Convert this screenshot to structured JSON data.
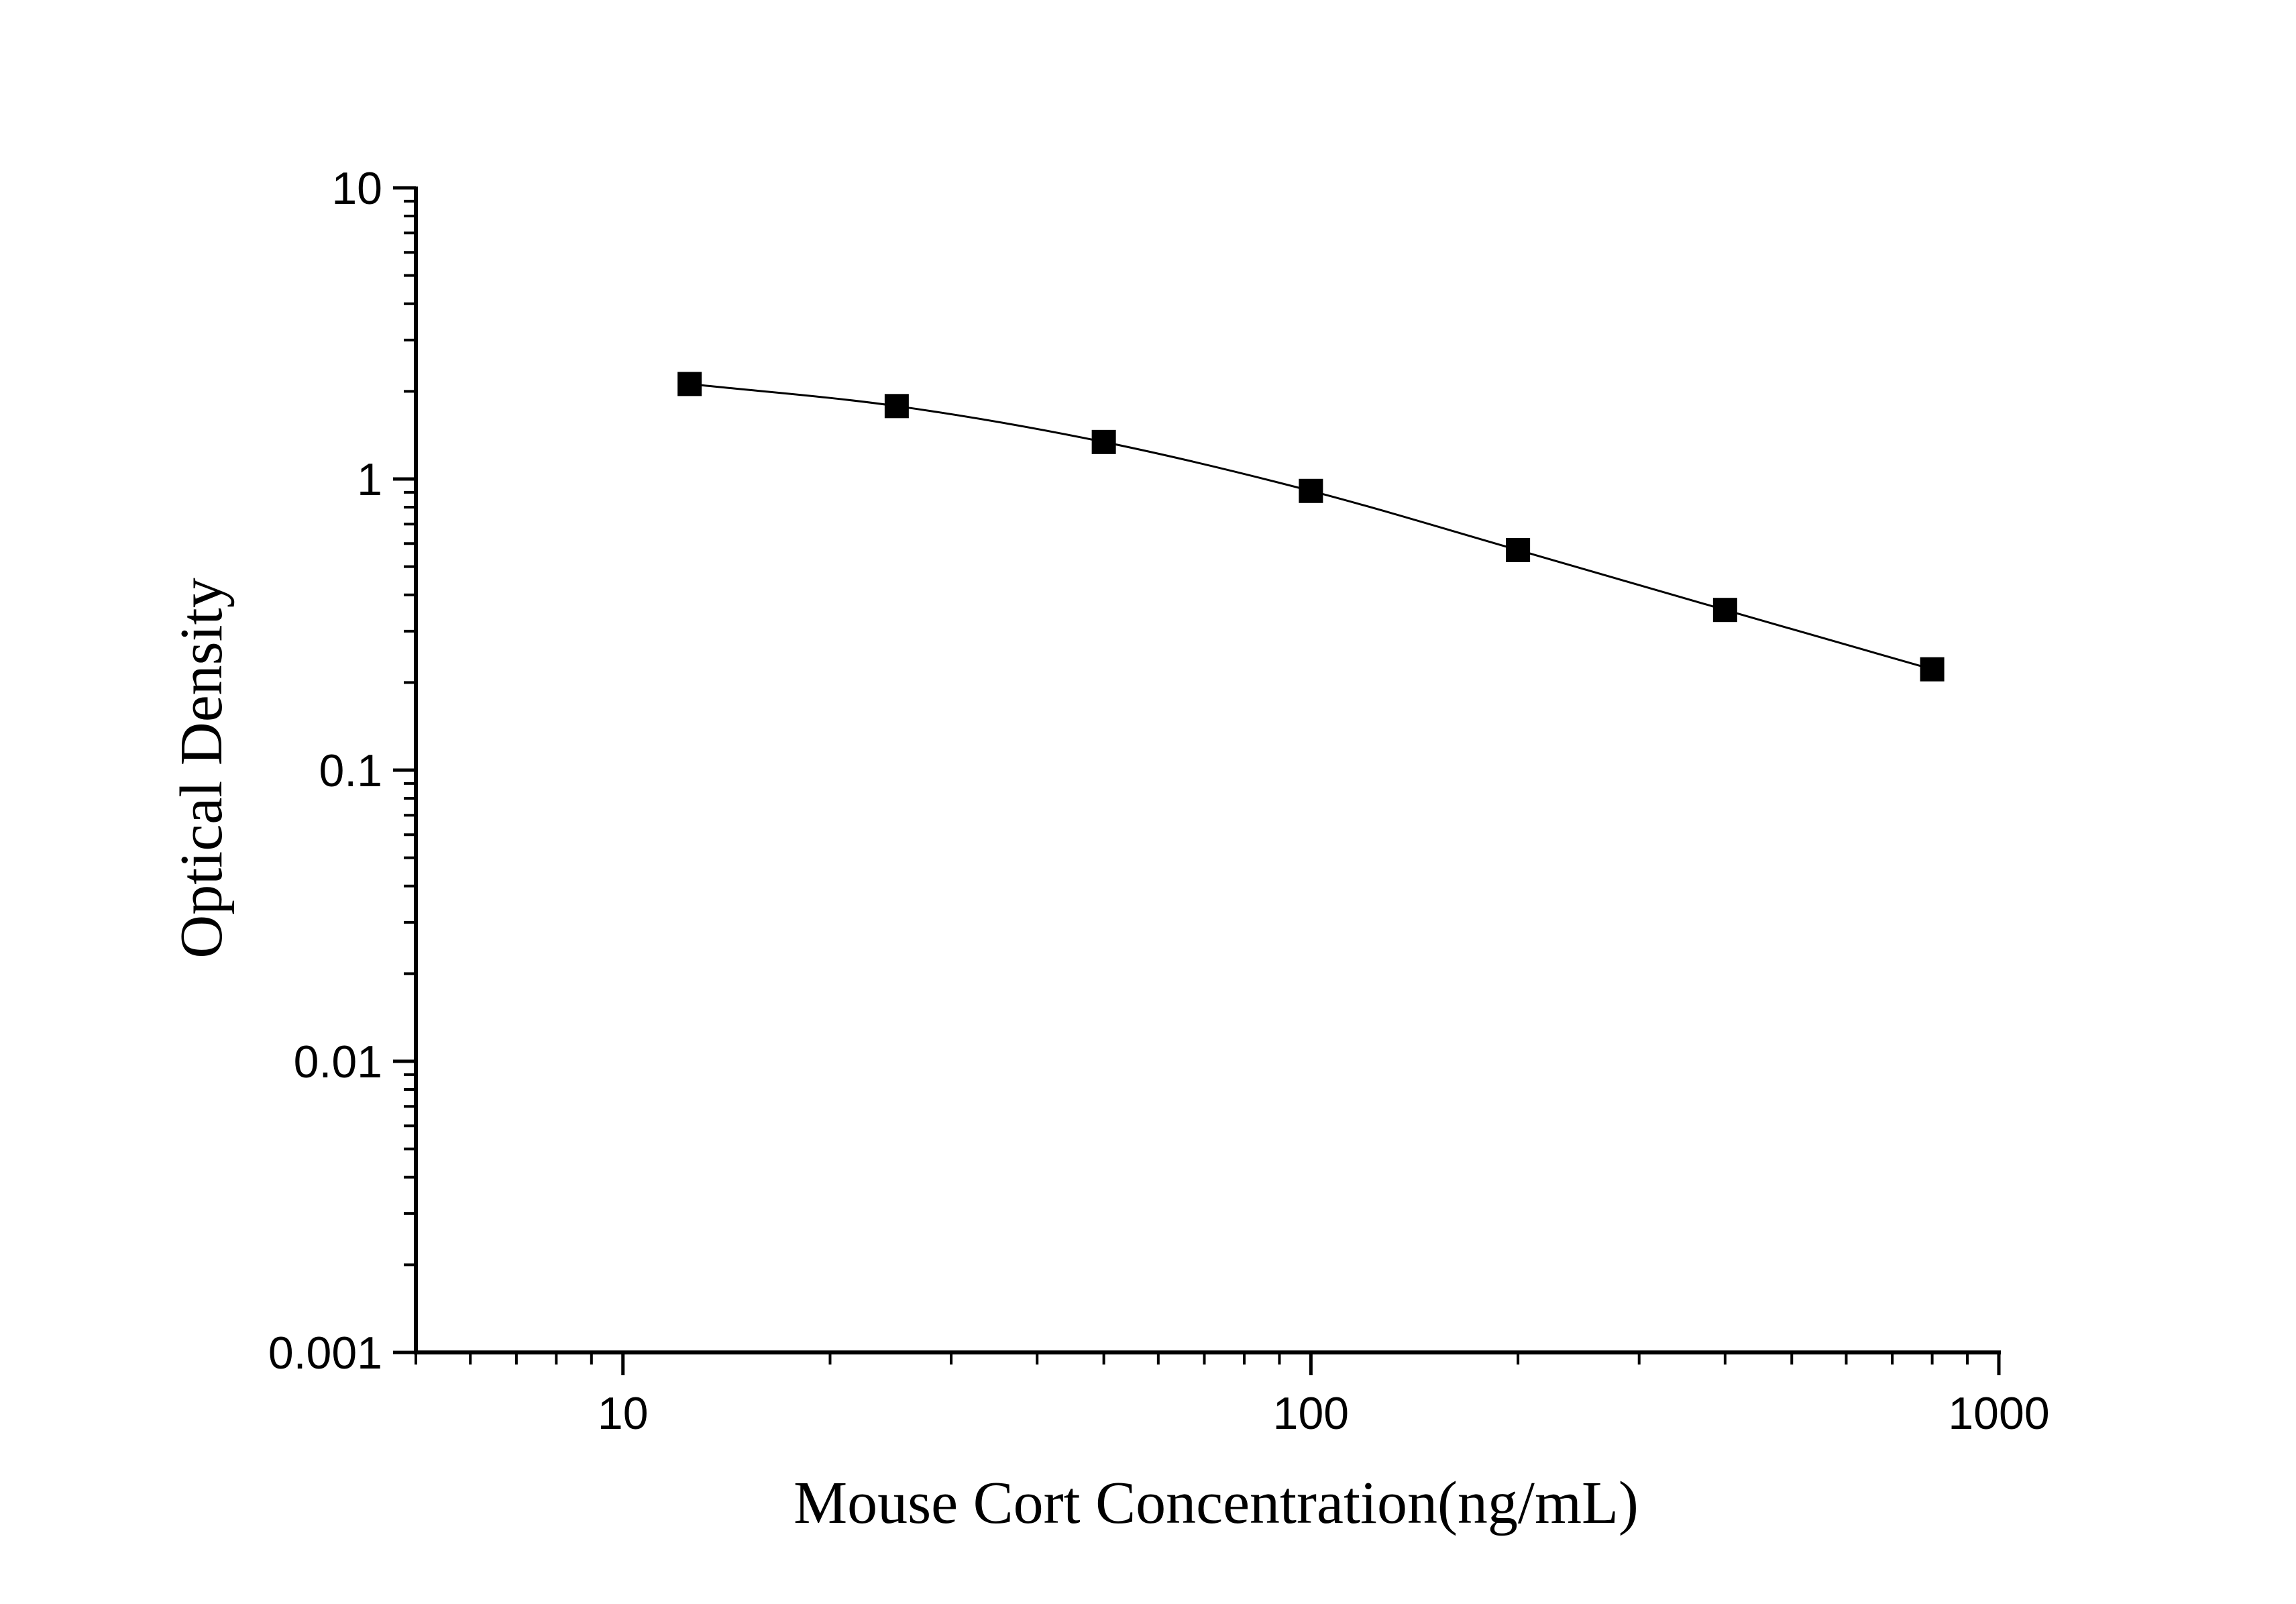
{
  "chart_data": {
    "type": "scatter",
    "title": "",
    "xlabel": "Mouse Cort Concentration(ng/mL)",
    "ylabel": "Optical Density",
    "x_scale": "log",
    "y_scale": "log",
    "xlim": [
      5,
      1000
    ],
    "ylim": [
      0.001,
      10
    ],
    "x_tick_labels": [
      "10",
      "100",
      "1000"
    ],
    "y_tick_labels": [
      "0.001",
      "0.01",
      "0.1",
      "1",
      "10"
    ],
    "grid": false,
    "legend": "none",
    "marker": "square",
    "fit_line": true,
    "colors": {
      "marker": "#000000",
      "line": "#000000",
      "axis": "#000000"
    },
    "series": [
      {
        "x": [
          12.5,
          25,
          50,
          100,
          200,
          400,
          800
        ],
        "y": [
          2.12,
          1.78,
          1.34,
          0.91,
          0.57,
          0.355,
          0.222
        ]
      }
    ]
  }
}
